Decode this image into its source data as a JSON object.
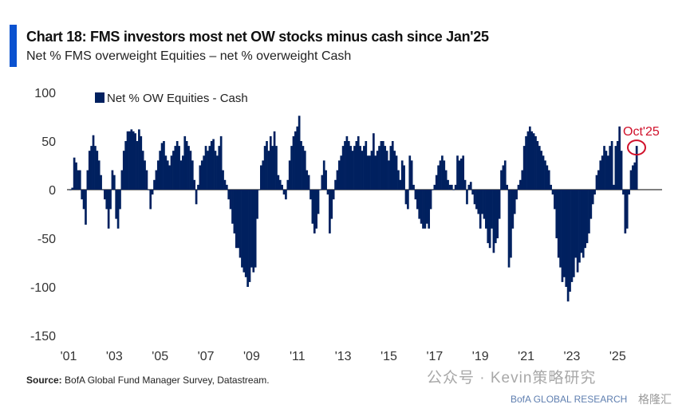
{
  "header": {
    "title": "Chart 18: FMS investors most net OW stocks minus cash since Jan'25",
    "subtitle": "Net % FMS overweight Equities – net % overweight Cash"
  },
  "footer": {
    "source_label": "Source:",
    "source_text": "BofA Global Fund Manager Survey, Datastream.",
    "watermark": "公众号 · Kevin策略研究",
    "watermark_brand": "BofA GLOBAL RESEARCH",
    "watermark_corner": "格隆汇"
  },
  "colors": {
    "bar": "#00205f",
    "accent": "#0a52d0",
    "annotation": "#d0102a"
  },
  "chart_data": {
    "type": "bar",
    "title": "Chart 18: FMS investors most net OW stocks minus cash since Jan'25",
    "subtitle": "Net % FMS overweight Equities – net % overweight Cash",
    "frequency": "monthly",
    "start": "Jan 2001",
    "end": "Oct 2025",
    "series": [
      {
        "name": "Net % OW Equities - Cash",
        "values": [
          0,
          2,
          33,
          28,
          20,
          20,
          -10,
          -20,
          -36,
          20,
          40,
          45,
          56,
          45,
          40,
          30,
          15,
          0,
          -10,
          -20,
          -40,
          -20,
          20,
          15,
          -30,
          -40,
          -20,
          20,
          40,
          50,
          60,
          60,
          62,
          60,
          58,
          50,
          62,
          55,
          40,
          30,
          20,
          0,
          -20,
          -5,
          10,
          20,
          30,
          40,
          48,
          50,
          35,
          30,
          25,
          35,
          40,
          45,
          50,
          45,
          30,
          35,
          55,
          50,
          45,
          40,
          30,
          10,
          -15,
          5,
          25,
          30,
          35,
          45,
          40,
          45,
          50,
          52,
          40,
          35,
          45,
          55,
          20,
          10,
          5,
          -10,
          -20,
          -35,
          -45,
          -60,
          -60,
          -70,
          -80,
          -85,
          -90,
          -100,
          -95,
          -80,
          -85,
          -80,
          -30,
          0,
          25,
          30,
          45,
          50,
          40,
          55,
          45,
          60,
          45,
          15,
          10,
          5,
          -5,
          -10,
          10,
          30,
          45,
          55,
          60,
          65,
          76,
          50,
          45,
          40,
          20,
          15,
          -10,
          -35,
          -45,
          -40,
          -25,
          0,
          15,
          30,
          20,
          -5,
          -45,
          -30,
          -10,
          10,
          20,
          30,
          35,
          45,
          50,
          55,
          50,
          45,
          40,
          45,
          50,
          55,
          45,
          40,
          45,
          50,
          35,
          35,
          40,
          58,
          35,
          40,
          45,
          50,
          50,
          45,
          40,
          30,
          45,
          50,
          40,
          35,
          20,
          10,
          30,
          25,
          -15,
          -20,
          35,
          30,
          5,
          -10,
          -20,
          -30,
          -35,
          -40,
          -40,
          -35,
          -40,
          -20,
          0,
          5,
          15,
          25,
          30,
          35,
          30,
          20,
          10,
          5,
          5,
          0,
          5,
          35,
          30,
          32,
          35,
          10,
          -15,
          5,
          8,
          -5,
          -15,
          -20,
          -25,
          -40,
          -25,
          -30,
          -40,
          -55,
          -60,
          -40,
          -65,
          -55,
          -50,
          -30,
          20,
          25,
          30,
          5,
          -80,
          -70,
          -40,
          -25,
          -10,
          5,
          10,
          20,
          45,
          55,
          60,
          65,
          60,
          58,
          55,
          50,
          45,
          40,
          35,
          30,
          25,
          20,
          5,
          -5,
          -20,
          -50,
          -70,
          -80,
          -95,
          -90,
          -100,
          -115,
          -105,
          -95,
          -90,
          -70,
          -85,
          -75,
          -65,
          -70,
          -60,
          -55,
          -45,
          -30,
          -15,
          -5,
          15,
          20,
          30,
          35,
          45,
          40,
          35,
          45,
          50,
          5,
          45,
          50,
          65,
          40,
          -5,
          -45,
          -40,
          -5,
          20,
          25,
          28,
          45
        ]
      }
    ],
    "x_tick_labels": [
      "'01",
      "'03",
      "'05",
      "'07",
      "'09",
      "'11",
      "'13",
      "'15",
      "'17",
      "'19",
      "'21",
      "'23",
      "'25"
    ],
    "y_tick_labels": [
      "100",
      "50",
      "0",
      "-50",
      "-100",
      "-150"
    ],
    "y_ticks": [
      100,
      50,
      0,
      -50,
      -100,
      -150
    ],
    "ylim": [
      -150,
      100
    ],
    "xlabel": "",
    "ylabel": "",
    "grid": false,
    "legend": {
      "entries": [
        "Net % OW Equities - Cash"
      ],
      "placement": "top-left"
    },
    "annotations": [
      {
        "text": "Oct'25",
        "target": "Oct 2025",
        "style": "red circle"
      }
    ]
  }
}
